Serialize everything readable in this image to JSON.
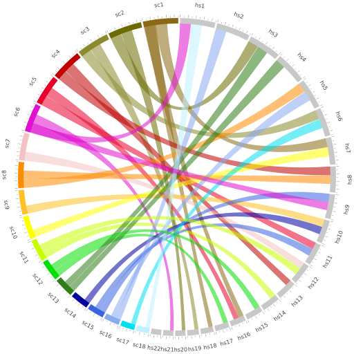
{
  "diagram": {
    "type": "chord",
    "segments": [
      {
        "label": "sc1",
        "color": "#8B6914"
      },
      {
        "label": "sc2",
        "color": "#6B6B00"
      },
      {
        "label": "sc3",
        "color": "#8B8B2E"
      },
      {
        "label": "sc4",
        "color": "#C00000"
      },
      {
        "label": "sc5",
        "color": "#E8002B"
      },
      {
        "label": "sc6",
        "color": "#E010D0"
      },
      {
        "label": "sc7",
        "color": "#F4C2C2"
      },
      {
        "label": "sc8",
        "color": "#FF8C00"
      },
      {
        "label": "sc9",
        "color": "#FFC125"
      },
      {
        "label": "sc10",
        "color": "#FFFF00"
      },
      {
        "label": "sc11",
        "color": "#C8FF00"
      },
      {
        "label": "sc12",
        "color": "#00E000"
      },
      {
        "label": "sc13",
        "color": "#2E7D16"
      },
      {
        "label": "sc14",
        "color": "#0000A0"
      },
      {
        "label": "sc15",
        "color": "#3A64E0"
      },
      {
        "label": "sc16",
        "color": "#88AAF0"
      },
      {
        "label": "sc17",
        "color": "#00E0F0"
      },
      {
        "label": "sc18",
        "color": "#C0F0FF"
      },
      {
        "label": "hs22",
        "color": "#C8C8C8"
      },
      {
        "label": "hs21",
        "color": "#C8C8C8"
      },
      {
        "label": "hs20",
        "color": "#C8C8C8"
      },
      {
        "label": "hs19",
        "color": "#C8C8C8"
      },
      {
        "label": "hs18",
        "color": "#C8C8C8"
      },
      {
        "label": "hs17",
        "color": "#C8C8C8"
      },
      {
        "label": "hs16",
        "color": "#C8C8C8"
      },
      {
        "label": "hs15",
        "color": "#C8C8C8"
      },
      {
        "label": "hs14",
        "color": "#C8C8C8"
      },
      {
        "label": "hs13",
        "color": "#C8C8C8"
      },
      {
        "label": "hs12",
        "color": "#C8C8C8"
      },
      {
        "label": "hs11",
        "color": "#C8C8C8"
      },
      {
        "label": "hs10",
        "color": "#C8C8C8"
      },
      {
        "label": "hs9",
        "color": "#C8C8C8"
      },
      {
        "label": "hs8",
        "color": "#C8C8C8"
      },
      {
        "label": "hs7",
        "color": "#C8C8C8"
      },
      {
        "label": "hs6",
        "color": "#C8C8C8"
      },
      {
        "label": "hs5",
        "color": "#C8C8C8"
      },
      {
        "label": "hs4",
        "color": "#C8C8C8"
      },
      {
        "label": "hs3",
        "color": "#C8C8C8"
      },
      {
        "label": "hs2",
        "color": "#C8C8C8"
      },
      {
        "label": "hs1",
        "color": "#C8C8C8"
      }
    ],
    "ribbons": [
      {
        "from": "sc1",
        "to": "hs16",
        "color": "#8B6914"
      },
      {
        "from": "sc1",
        "to": "hs7",
        "color": "#8B6914"
      },
      {
        "from": "sc1",
        "to": "hs18",
        "color": "#8B6914"
      },
      {
        "from": "sc2",
        "to": "hs3",
        "color": "#6B6B00"
      },
      {
        "from": "sc2",
        "to": "hs20",
        "color": "#6B6B00"
      },
      {
        "from": "sc3",
        "to": "hs6",
        "color": "#8B8B2E"
      },
      {
        "from": "sc3",
        "to": "hs19",
        "color": "#8B8B2E"
      },
      {
        "from": "sc4",
        "to": "hs8",
        "color": "#C00000"
      },
      {
        "from": "sc4",
        "to": "hs13",
        "color": "#C00000"
      },
      {
        "from": "sc5",
        "to": "hs11",
        "color": "#E8002B"
      },
      {
        "from": "sc5",
        "to": "hs16",
        "color": "#E8002B"
      },
      {
        "from": "sc6",
        "to": "hs1",
        "color": "#E010D0"
      },
      {
        "from": "sc6",
        "to": "hs21",
        "color": "#E010D0"
      },
      {
        "from": "sc7",
        "to": "hs12",
        "color": "#F4C2C2"
      },
      {
        "from": "sc8",
        "to": "hs5",
        "color": "#FF8C00"
      },
      {
        "from": "sc8",
        "to": "hs8",
        "color": "#FF8C00"
      },
      {
        "from": "sc9",
        "to": "hs10",
        "color": "#FFC125"
      },
      {
        "from": "sc10",
        "to": "hs7",
        "color": "#FFFF00"
      },
      {
        "from": "sc11",
        "to": "hs14",
        "color": "#C8FF00"
      },
      {
        "from": "sc12",
        "to": "hs17",
        "color": "#00E000"
      },
      {
        "from": "sc13",
        "to": "hs4",
        "color": "#2E7D16"
      },
      {
        "from": "sc13",
        "to": "hs3",
        "color": "#2E7D16"
      },
      {
        "from": "sc14",
        "to": "hs10",
        "color": "#0000A0"
      },
      {
        "from": "sc15",
        "to": "hs9",
        "color": "#3A64E0"
      },
      {
        "from": "sc15",
        "to": "hs11",
        "color": "#3A64E0"
      },
      {
        "from": "sc16",
        "to": "hs2",
        "color": "#88AAF0"
      },
      {
        "from": "sc16",
        "to": "hs5",
        "color": "#88AAF0"
      },
      {
        "from": "sc17",
        "to": "hs6",
        "color": "#00E0F0"
      },
      {
        "from": "sc18",
        "to": "hs1",
        "color": "#C0F0FF"
      },
      {
        "from": "sc12",
        "to": "hs15",
        "color": "#00E000"
      },
      {
        "from": "sc6",
        "to": "hs9",
        "color": "#E010D0"
      },
      {
        "from": "sc11",
        "to": "hs12",
        "color": "#C8FF00"
      }
    ]
  }
}
